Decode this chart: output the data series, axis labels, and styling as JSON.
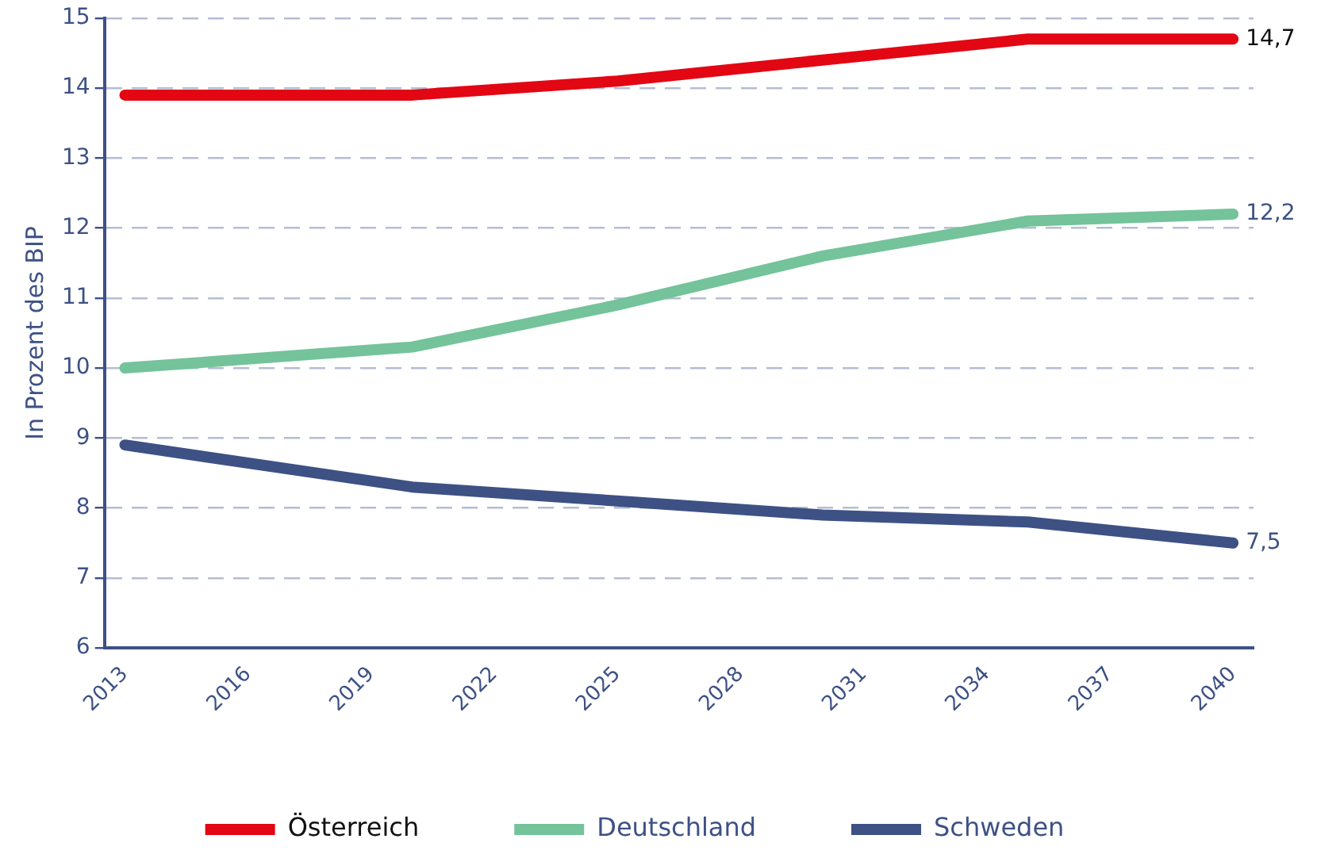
{
  "chart_data": {
    "type": "line",
    "ylabel": "In Prozent des BIP",
    "categories": [
      "2013",
      null,
      null,
      "2016",
      null,
      null,
      "2019",
      null,
      null,
      "2022",
      null,
      null,
      "2025",
      null,
      null,
      "2028",
      null,
      null,
      "2031",
      null,
      null,
      "2034",
      null,
      null,
      "2037",
      null,
      null,
      "2040"
    ],
    "ylim": [
      6,
      15
    ],
    "yticks": [
      6,
      7,
      8,
      9,
      10,
      11,
      12,
      13,
      14,
      15
    ],
    "grid": "y",
    "legend": "bottom",
    "marker": "none",
    "line_style": "solid",
    "series": [
      {
        "name": "Österreich",
        "color": "#e30613",
        "values": [
          13.9,
          null,
          null,
          null,
          null,
          null,
          null,
          13.9,
          null,
          null,
          null,
          null,
          14.1,
          null,
          null,
          null,
          null,
          14.4,
          null,
          null,
          null,
          null,
          14.7,
          null,
          null,
          null,
          null,
          14.7
        ],
        "value_labels": [
          null,
          null,
          null,
          null,
          null,
          null,
          null,
          null,
          null,
          null,
          null,
          null,
          null,
          null,
          null,
          null,
          null,
          null,
          null,
          null,
          null,
          null,
          null,
          null,
          null,
          null,
          null,
          "14,7"
        ]
      },
      {
        "name": "Deutschland",
        "color": "#74c39a",
        "values": [
          10.0,
          null,
          null,
          null,
          null,
          null,
          null,
          10.3,
          null,
          null,
          null,
          null,
          10.9,
          null,
          null,
          null,
          null,
          11.6,
          null,
          null,
          null,
          null,
          12.1,
          null,
          null,
          null,
          null,
          12.2
        ],
        "value_labels": [
          null,
          null,
          null,
          null,
          null,
          null,
          null,
          null,
          null,
          null,
          null,
          null,
          null,
          null,
          null,
          null,
          null,
          null,
          null,
          null,
          null,
          null,
          null,
          null,
          null,
          null,
          null,
          "12,2"
        ]
      },
      {
        "name": "Schweden",
        "color": "#3d5185",
        "values": [
          8.9,
          null,
          null,
          null,
          null,
          null,
          null,
          8.3,
          null,
          null,
          null,
          null,
          8.1,
          null,
          null,
          null,
          null,
          7.9,
          null,
          null,
          null,
          null,
          7.8,
          null,
          null,
          null,
          null,
          7.5
        ],
        "value_labels": [
          null,
          null,
          null,
          null,
          null,
          null,
          null,
          null,
          null,
          null,
          null,
          null,
          null,
          null,
          null,
          null,
          null,
          null,
          null,
          null,
          null,
          null,
          null,
          null,
          null,
          null,
          null,
          "7,5"
        ]
      }
    ]
  }
}
